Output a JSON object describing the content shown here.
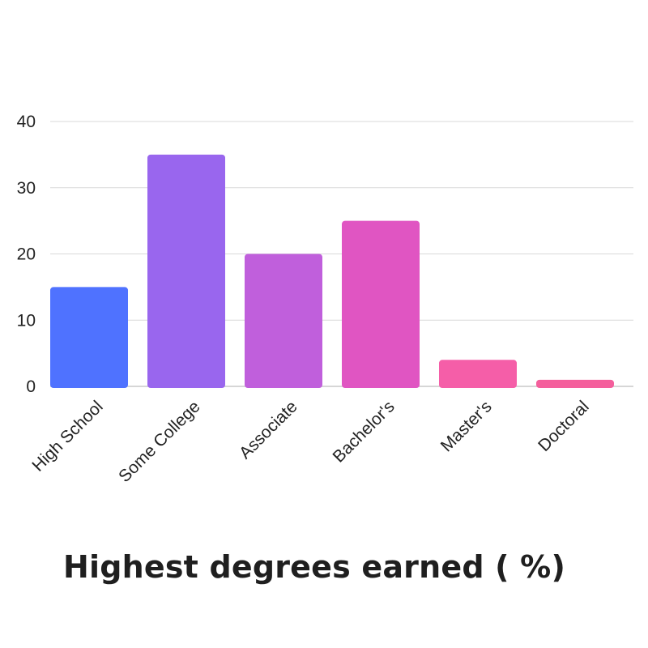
{
  "chart_data": {
    "type": "bar",
    "title": "Highest degrees earned ( %)",
    "xlabel": "",
    "ylabel": "",
    "categories": [
      "High School",
      "Some College",
      "Associate",
      "Bachelor's",
      "Master's",
      "Doctoral"
    ],
    "values": [
      15,
      35,
      20,
      25,
      4,
      1
    ],
    "ylim": [
      0,
      40
    ],
    "yticks": [
      "0",
      "10",
      "20",
      "30",
      "40"
    ],
    "grid": true,
    "legend": "none",
    "bar_colors": [
      "#4f72ff",
      "#9966ee",
      "#c05fdc",
      "#e055c2",
      "#f55ea8",
      "#f45f9c"
    ]
  }
}
